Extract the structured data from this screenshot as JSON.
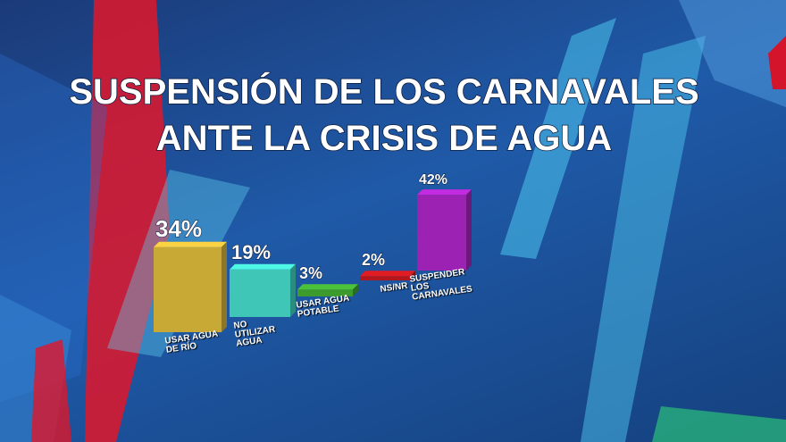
{
  "chart_data": {
    "type": "bar",
    "title_lines": [
      "SUSPENSIÓN DE LOS CARNAVALES",
      "ANTE LA CRISIS DE AGUA"
    ],
    "categories": [
      "USAR AGUA DE RÍO",
      "NO UTILIZAR AGUA",
      "USAR AGUA POTABLE",
      "NS/NR",
      "SUSPENDER LOS CARNAVALES"
    ],
    "values": [
      34,
      19,
      3,
      2,
      42
    ],
    "value_labels": [
      "34%",
      "19%",
      "3%",
      "2%",
      "42%"
    ],
    "colors": [
      "#c9a935",
      "#3fc6b6",
      "#3d9b2e",
      "#b3171c",
      "#9b22b3"
    ]
  }
}
